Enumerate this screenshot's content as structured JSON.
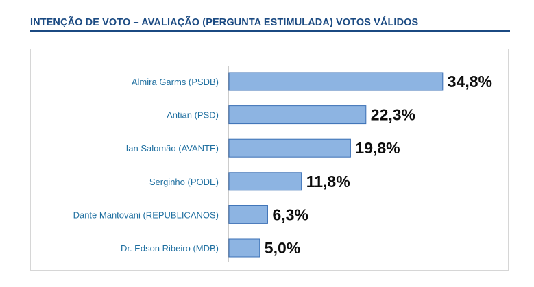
{
  "header": {
    "title": "INTENÇÃO DE VOTO – AVALIAÇÃO (PERGUNTA ESTIMULADA) VOTOS VÁLIDOS"
  },
  "colors": {
    "title": "#1b4a82",
    "bar_fill": "#8db4e2",
    "bar_stroke": "#3a6fb5",
    "category_text": "#1f6fa0",
    "value_text": "#0d0d0d"
  },
  "chart_data": {
    "type": "bar",
    "orientation": "horizontal",
    "categories": [
      "Almira Garms (PSDB)",
      "Antian (PSD)",
      "Ian Salomão (AVANTE)",
      "Serginho (PODE)",
      "Dante Mantovani (REPUBLICANOS)",
      "Dr. Edson Ribeiro (MDB)"
    ],
    "values": [
      34.8,
      22.3,
      19.8,
      11.8,
      6.3,
      5.0
    ],
    "data_labels": [
      "34,8%",
      "22,3%",
      "19,8%",
      "11,8%",
      "6,3%",
      "5,0%"
    ],
    "xlim": [
      0,
      37.5
    ],
    "grid": false,
    "legend": "none"
  }
}
